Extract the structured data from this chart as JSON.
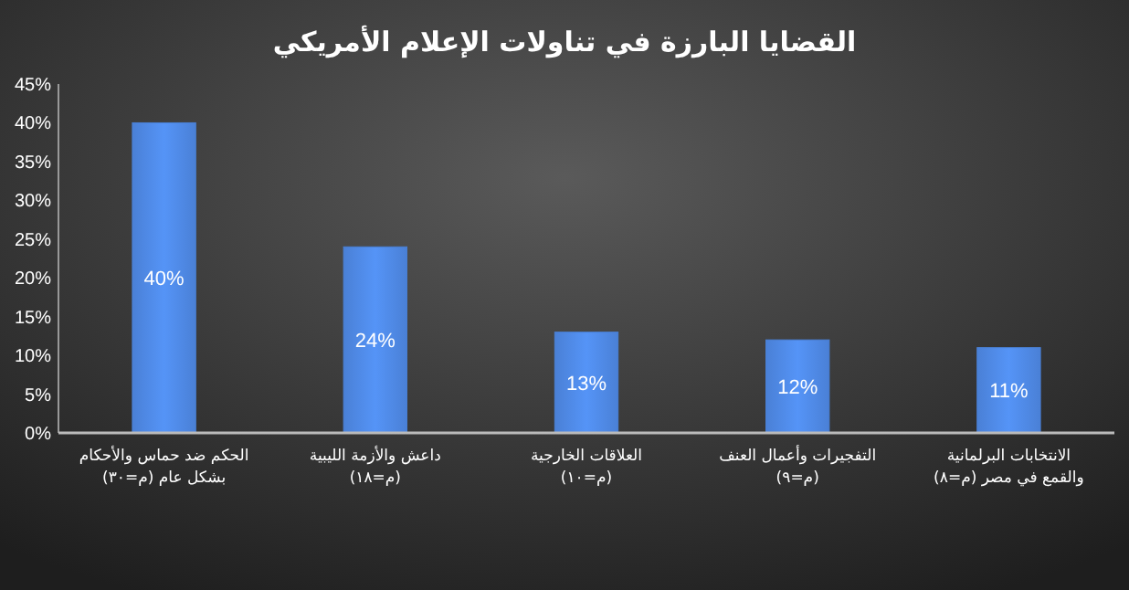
{
  "chart_data": {
    "type": "bar",
    "title": "القضايا البارزة في تناولات الإعلام الأمريكي",
    "categories": [
      "الحكم ضد حماس والأحكام بشكل عام (م=٣٠)",
      "داعش والأزمة الليبية (م=١٨)",
      "العلاقات الخارجية (م=١٠)",
      "التفجيرات وأعمال العنف (م=٩)",
      "الانتخابات البرلمانية والقمع في مصر (م=٨)"
    ],
    "values": [
      40,
      24,
      13,
      12,
      11
    ],
    "value_labels": [
      "40%",
      "24%",
      "13%",
      "12%",
      "11%"
    ],
    "color": "#4a80d6",
    "ylim": [
      0,
      45
    ],
    "yticks": [
      {
        "value": 0,
        "label": "0%"
      },
      {
        "value": 5,
        "label": "5%"
      },
      {
        "value": 10,
        "label": "10%"
      },
      {
        "value": 15,
        "label": "15%"
      },
      {
        "value": 20,
        "label": "20%"
      },
      {
        "value": 25,
        "label": "25%"
      },
      {
        "value": 30,
        "label": "30%"
      },
      {
        "value": 35,
        "label": "35%"
      },
      {
        "value": 40,
        "label": "40%"
      },
      {
        "value": 45,
        "label": "45%"
      }
    ],
    "grid": false
  }
}
